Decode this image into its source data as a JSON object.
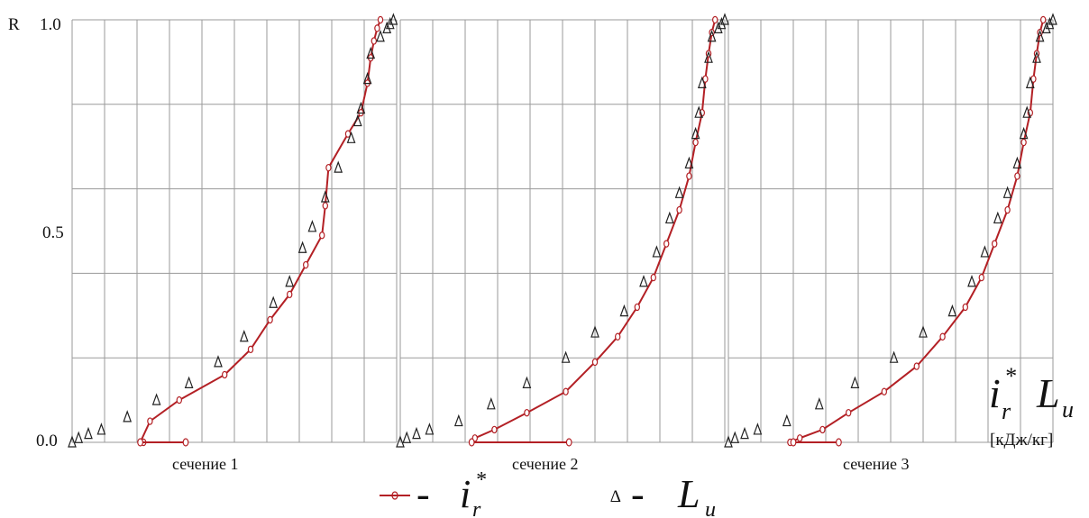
{
  "chart_data": {
    "type": "line",
    "y_axis_label": "R",
    "y_ticks": [
      "0.0",
      "0.5",
      "1.0"
    ],
    "ylim": [
      0,
      1.0
    ],
    "xlim": [
      0,
      1.0
    ],
    "grid": true,
    "x_axis_symbol": {
      "main": "i",
      "sub": "r",
      "sup": "*",
      "second_main": "L",
      "second_sub": "u"
    },
    "x_units": "[кДж/кг]",
    "legend": {
      "series1": {
        "prefix": "- ",
        "main": "i",
        "sub": "r",
        "sup": "*"
      },
      "series2": {
        "prefix": "- ",
        "main": "L",
        "sub": "u"
      }
    },
    "colors": {
      "ir_line": "#b32025",
      "lu_marker": "#222222",
      "grid": "#9a9a9a"
    },
    "panels": [
      {
        "label": "сечение 1",
        "i_r": {
          "x": [
            0.22,
            0.21,
            0.24,
            0.33,
            0.47,
            0.55,
            0.61,
            0.67,
            0.72,
            0.77,
            0.78,
            0.79,
            0.85,
            0.89,
            0.91,
            0.92,
            0.93,
            0.94,
            0.95
          ],
          "y": [
            0.0,
            0.0,
            0.05,
            0.1,
            0.16,
            0.22,
            0.29,
            0.35,
            0.42,
            0.49,
            0.56,
            0.65,
            0.73,
            0.78,
            0.85,
            0.91,
            0.95,
            0.98,
            1.0
          ]
        },
        "i_r_bottom": {
          "x": [
            0.21,
            0.35
          ],
          "y": [
            0.0,
            0.0
          ]
        },
        "L_u": {
          "x": [
            0.0,
            0.02,
            0.05,
            0.09,
            0.17,
            0.26,
            0.36,
            0.45,
            0.53,
            0.62,
            0.67,
            0.71,
            0.74,
            0.78,
            0.82,
            0.86,
            0.88,
            0.89,
            0.91,
            0.92,
            0.95,
            0.97,
            0.98,
            0.99
          ],
          "y": [
            0.0,
            0.01,
            0.02,
            0.03,
            0.06,
            0.1,
            0.14,
            0.19,
            0.25,
            0.33,
            0.38,
            0.46,
            0.51,
            0.58,
            0.65,
            0.72,
            0.76,
            0.79,
            0.86,
            0.92,
            0.96,
            0.98,
            0.99,
            1.0
          ]
        }
      },
      {
        "label": "сечение 2",
        "i_r": {
          "x": [
            0.22,
            0.23,
            0.29,
            0.39,
            0.51,
            0.6,
            0.67,
            0.73,
            0.78,
            0.82,
            0.86,
            0.89,
            0.91,
            0.93,
            0.94,
            0.95,
            0.96,
            0.97
          ],
          "y": [
            0.0,
            0.01,
            0.03,
            0.07,
            0.12,
            0.19,
            0.25,
            0.32,
            0.39,
            0.47,
            0.55,
            0.63,
            0.71,
            0.78,
            0.86,
            0.92,
            0.97,
            1.0
          ]
        },
        "i_r_bottom": {
          "x": [
            0.22,
            0.52
          ],
          "y": [
            0.0,
            0.0
          ]
        },
        "L_u": {
          "x": [
            0.0,
            0.02,
            0.05,
            0.09,
            0.18,
            0.28,
            0.39,
            0.51,
            0.6,
            0.69,
            0.75,
            0.79,
            0.83,
            0.86,
            0.89,
            0.91,
            0.92,
            0.93,
            0.95,
            0.96,
            0.98,
            0.99,
            1.0
          ],
          "y": [
            0.0,
            0.01,
            0.02,
            0.03,
            0.05,
            0.09,
            0.14,
            0.2,
            0.26,
            0.31,
            0.38,
            0.45,
            0.53,
            0.59,
            0.66,
            0.73,
            0.78,
            0.85,
            0.91,
            0.96,
            0.98,
            0.99,
            1.0
          ]
        }
      },
      {
        "label": "сечение 3",
        "i_r": {
          "x": [
            0.19,
            0.22,
            0.29,
            0.37,
            0.48,
            0.58,
            0.66,
            0.73,
            0.78,
            0.82,
            0.86,
            0.89,
            0.91,
            0.93,
            0.94,
            0.95,
            0.96,
            0.97
          ],
          "y": [
            0.0,
            0.01,
            0.03,
            0.07,
            0.12,
            0.18,
            0.25,
            0.32,
            0.39,
            0.47,
            0.55,
            0.63,
            0.71,
            0.78,
            0.86,
            0.92,
            0.97,
            1.0
          ]
        },
        "i_r_bottom": {
          "x": [
            0.2,
            0.34
          ],
          "y": [
            0.0,
            0.0
          ]
        },
        "L_u": {
          "x": [
            0.0,
            0.02,
            0.05,
            0.09,
            0.18,
            0.28,
            0.39,
            0.51,
            0.6,
            0.69,
            0.75,
            0.79,
            0.83,
            0.86,
            0.89,
            0.91,
            0.92,
            0.93,
            0.95,
            0.96,
            0.98,
            0.99,
            1.0
          ],
          "y": [
            0.0,
            0.01,
            0.02,
            0.03,
            0.05,
            0.09,
            0.14,
            0.2,
            0.26,
            0.31,
            0.38,
            0.45,
            0.53,
            0.59,
            0.66,
            0.73,
            0.78,
            0.85,
            0.91,
            0.96,
            0.98,
            0.99,
            1.0
          ]
        }
      }
    ]
  }
}
